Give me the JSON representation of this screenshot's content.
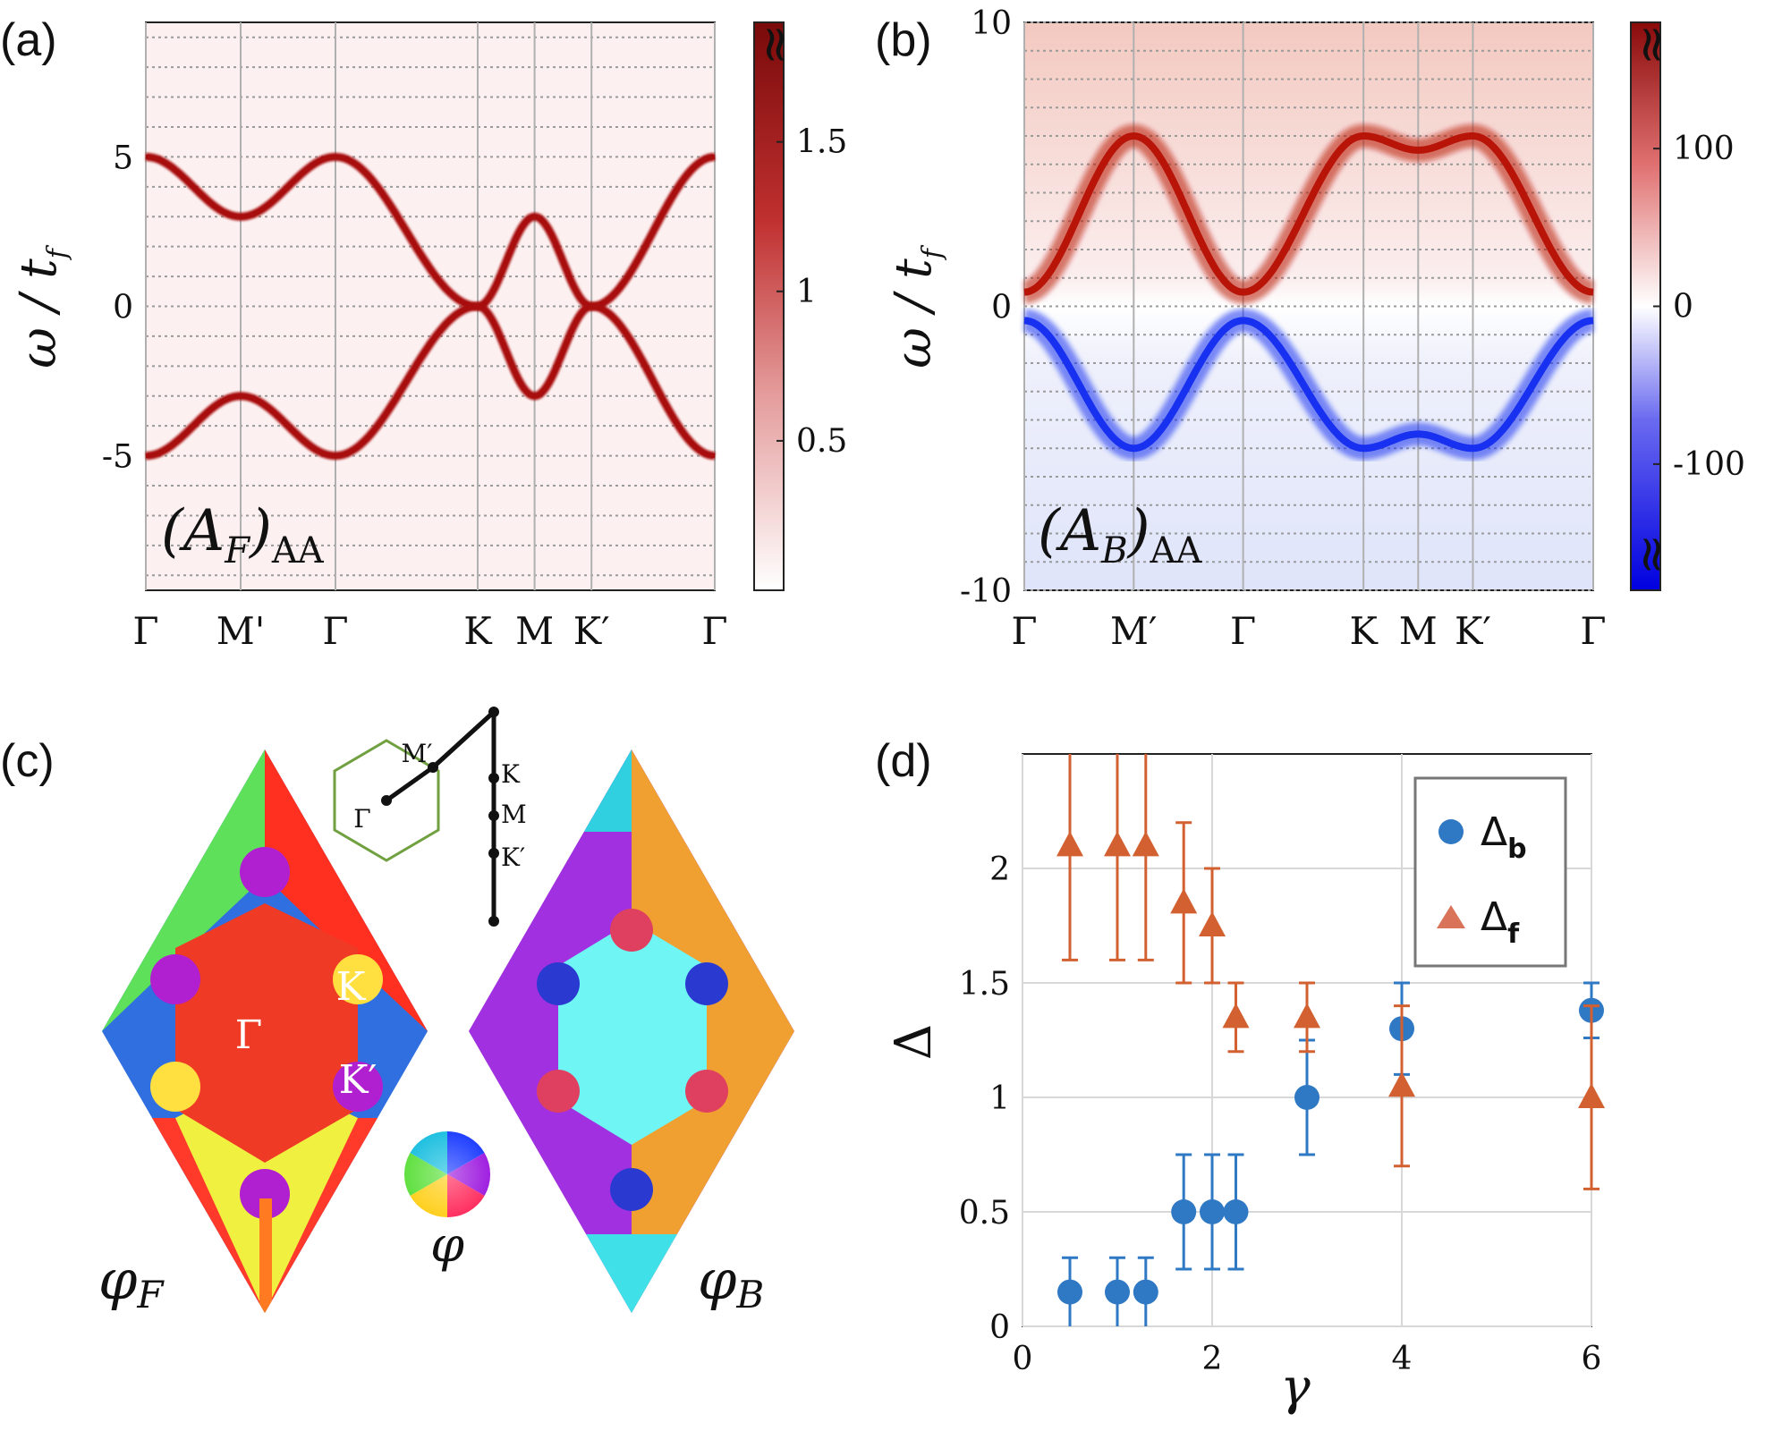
{
  "chart_data": [
    {
      "panel": "(a)",
      "type": "heatmap",
      "title": "",
      "ylabel": "ω / t_f",
      "ylabel_parts": {
        "main": "ω / t",
        "sub": "f"
      },
      "overlay_label": {
        "main": "(A",
        "sub": "F",
        "tail": ")",
        "subscript": "AA"
      },
      "ylim": [
        -9.5,
        9.5
      ],
      "yticks": [
        "5",
        "0",
        "-5"
      ],
      "ytick_values": [
        5,
        0,
        -5
      ],
      "xticks": [
        "Γ",
        "M'",
        "Γ",
        "K",
        "M",
        "K′",
        "Γ"
      ],
      "xtick_positions": [
        0,
        1,
        2,
        3.5,
        4.1,
        4.7,
        6
      ],
      "colorbar_ticks": [
        "1.5",
        "1",
        "0.5"
      ],
      "colorbar_tick_values": [
        1.5,
        1.0,
        0.5
      ],
      "colorbar_range": [
        0,
        1.9
      ],
      "colorbar_break": "≈",
      "band_points": {
        "k": [
          0,
          1,
          2,
          3.5,
          4.1,
          4.7,
          6
        ],
        "upper": [
          5,
          3,
          5,
          0,
          3,
          0,
          5
        ],
        "lower": [
          -5,
          -3,
          -5,
          0,
          -3,
          0,
          -5
        ]
      }
    },
    {
      "panel": "(b)",
      "type": "heatmap",
      "title": "",
      "ylabel": "ω / t_f",
      "ylabel_parts": {
        "main": "ω / t",
        "sub": "f"
      },
      "overlay_label": {
        "main": "(A",
        "sub": "B",
        "tail": ")",
        "subscript": "AA"
      },
      "ylim": [
        -10,
        10
      ],
      "yticks": [
        "10",
        "0",
        "-10"
      ],
      "ytick_values": [
        10,
        0,
        -10
      ],
      "xticks": [
        "Γ",
        "M′",
        "Γ",
        "K",
        "M",
        "K′",
        "Γ"
      ],
      "xtick_positions": [
        0,
        1,
        2,
        3.1,
        3.6,
        4.1,
        5.2
      ],
      "colorbar_ticks": [
        "100",
        "0",
        "-100"
      ],
      "colorbar_tick_values": [
        100,
        0,
        -100
      ],
      "colorbar_range": [
        -180,
        180
      ],
      "colorbar_break": "≈",
      "band_points": {
        "k": [
          0,
          1,
          2,
          3.1,
          3.6,
          4.1,
          5.2
        ],
        "upper": [
          0.5,
          6,
          0.5,
          6,
          5.5,
          6,
          0.5
        ],
        "lower": [
          -0.5,
          -5,
          -0.5,
          -5,
          -4.5,
          -5,
          -0.5
        ]
      }
    },
    {
      "panel": "(c)",
      "type": "other",
      "description_labels": {
        "left_map": {
          "main": "φ",
          "sub": "F"
        },
        "right_map": {
          "main": "φ",
          "sub": "B"
        },
        "wheel": "φ"
      },
      "bz_labels": [
        "M′",
        "K",
        "M",
        "K′",
        "Γ"
      ],
      "map_labels": [
        "Γ",
        "K",
        "K′"
      ]
    },
    {
      "panel": "(d)",
      "type": "scatter",
      "title": "",
      "xlabel": "γ",
      "ylabel": "Δ",
      "xlim": [
        0,
        6
      ],
      "ylim": [
        0,
        2.5
      ],
      "xticks": [
        "0",
        "2",
        "4",
        "6"
      ],
      "xtick_values": [
        0,
        2,
        4,
        6
      ],
      "yticks": [
        "0",
        "0.5",
        "1",
        "1.5",
        "2"
      ],
      "ytick_values": [
        0,
        0.5,
        1,
        1.5,
        2
      ],
      "legend_position": "top-right",
      "series": [
        {
          "name": "Δ_b",
          "legend": {
            "main": "Δ",
            "sub": "b"
          },
          "marker": "circle",
          "color": "#2f78c4",
          "x": [
            0.5,
            1,
            1.3,
            1.7,
            2,
            2.25,
            3,
            4,
            6
          ],
          "y": [
            0.15,
            0.15,
            0.15,
            0.5,
            0.5,
            0.5,
            1.0,
            1.3,
            1.38
          ],
          "err": [
            0.15,
            0.15,
            0.15,
            0.25,
            0.25,
            0.25,
            0.25,
            0.2,
            0.12
          ]
        },
        {
          "name": "Δ_f",
          "legend": {
            "main": "Δ",
            "sub": "f"
          },
          "marker": "triangle",
          "color": "#d26030",
          "x": [
            0.5,
            1,
            1.3,
            1.7,
            2,
            2.25,
            3,
            4,
            6
          ],
          "y": [
            2.1,
            2.1,
            2.1,
            1.85,
            1.75,
            1.35,
            1.35,
            1.05,
            1.0
          ],
          "err": [
            0.5,
            0.5,
            0.5,
            0.35,
            0.25,
            0.15,
            0.15,
            0.35,
            0.4
          ]
        }
      ]
    }
  ]
}
